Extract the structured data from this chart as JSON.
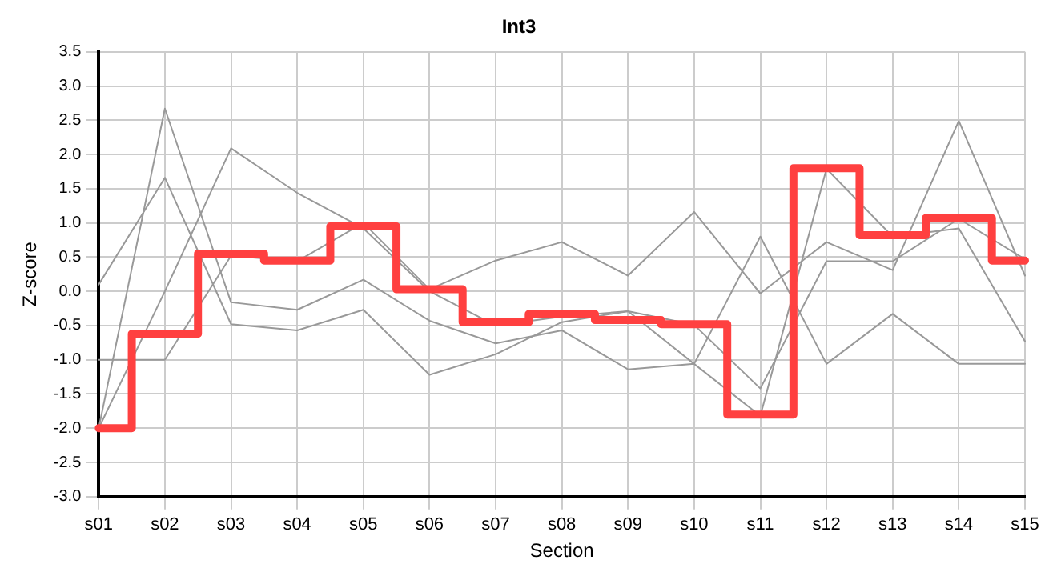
{
  "chart_data": {
    "type": "line",
    "title": "Int3",
    "xlabel": "Section",
    "ylabel": "Z-score",
    "categories": [
      "s01",
      "s02",
      "s03",
      "s04",
      "s05",
      "s06",
      "s07",
      "s08",
      "s09",
      "s10",
      "s11",
      "s12",
      "s13",
      "s14",
      "s15"
    ],
    "series": [
      {
        "color": "#999999",
        "values": [
          0.1,
          1.66,
          -0.48,
          -0.57,
          -0.27,
          -1.22,
          -0.92,
          -0.45,
          -0.29,
          -1.06,
          0.8,
          -1.06,
          -0.33,
          -1.06,
          -1.06
        ]
      },
      {
        "color": "#999999",
        "values": [
          -1.0,
          -1.0,
          0.52,
          0.44,
          1.0,
          0.03,
          0.45,
          0.72,
          0.23,
          1.16,
          -0.03,
          0.72,
          0.31,
          2.49,
          0.23
        ]
      },
      {
        "color": "#999999",
        "values": [
          -2.0,
          2.67,
          -0.16,
          -0.27,
          0.17,
          -0.43,
          -0.76,
          -0.57,
          -1.14,
          -1.06,
          -1.82,
          1.79,
          0.8,
          0.92,
          -0.73
        ]
      },
      {
        "color": "#999999",
        "values": [
          -2.0,
          0.0,
          2.09,
          1.44,
          0.92,
          0.0,
          -0.5,
          -0.37,
          -0.29,
          -0.49,
          -1.42,
          0.44,
          0.44,
          1.06,
          0.47
        ]
      },
      {
        "type": "step",
        "color": "#ff4040",
        "values": [
          -2.0,
          -0.62,
          0.55,
          0.45,
          0.95,
          0.03,
          -0.45,
          -0.33,
          -0.42,
          -0.48,
          -1.8,
          1.8,
          0.82,
          1.07,
          0.45
        ]
      }
    ],
    "ylim": [
      -3.0,
      3.5
    ],
    "yticks": [
      {
        "value": -3,
        "label": "-3.0"
      },
      {
        "value": -2.5,
        "label": "-2.5"
      },
      {
        "value": -2,
        "label": "-2.0"
      },
      {
        "value": -1.5,
        "label": "-1.5"
      },
      {
        "value": -1,
        "label": "-1.0"
      },
      {
        "value": -0.5,
        "label": "-0.5"
      },
      {
        "value": 0,
        "label": "0.0"
      },
      {
        "value": 0.5,
        "label": "0.5"
      },
      {
        "value": 1,
        "label": "1.0"
      },
      {
        "value": 1.5,
        "label": "1.5"
      },
      {
        "value": 2,
        "label": "2.0"
      },
      {
        "value": 2.5,
        "label": "2.5"
      },
      {
        "value": 3,
        "label": "3.0"
      },
      {
        "value": 3.5,
        "label": "3.5"
      }
    ],
    "grid": true,
    "legend": false
  }
}
